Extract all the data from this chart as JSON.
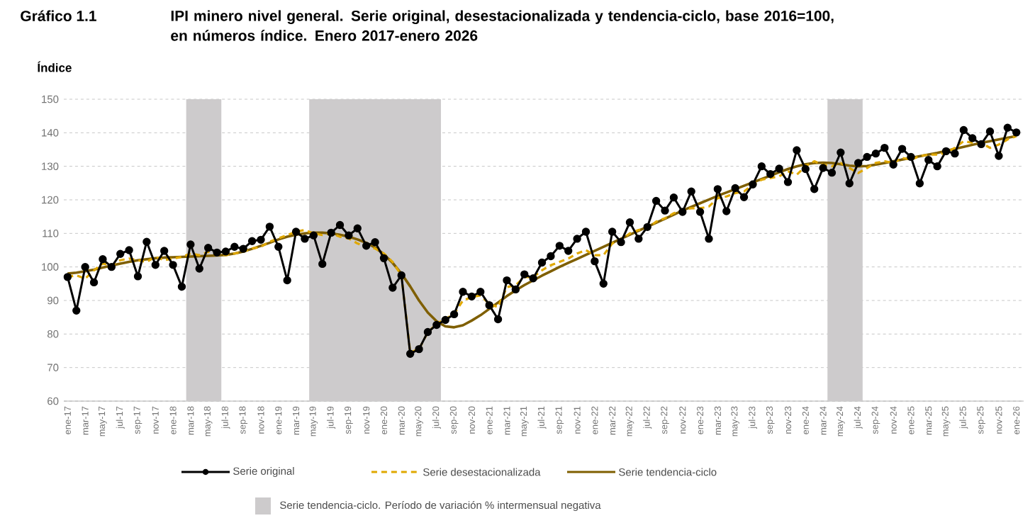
{
  "chart_data": {
    "type": "line",
    "title": "IPI minero nivel general. Serie original, desestacionalizada y tendencia-ciclo, base 2016=100, en números índice. Enero 2017-enero 2026",
    "annotations": [
      "Gráfico 1.1"
    ],
    "ylabel": "Índice",
    "x": [
      "2017-01",
      "2017-02",
      "2017-03",
      "2017-04",
      "2017-05",
      "2017-06",
      "2017-07",
      "2017-08",
      "2017-09",
      "2017-10",
      "2017-11",
      "2017-12",
      "2018-01",
      "2018-02",
      "2018-03",
      "2018-04",
      "2018-05",
      "2018-06",
      "2018-07",
      "2018-08",
      "2018-09",
      "2018-10",
      "2018-11",
      "2018-12",
      "2019-01",
      "2019-02",
      "2019-03",
      "2019-04",
      "2019-05",
      "2019-06",
      "2019-07",
      "2019-08",
      "2019-09",
      "2019-10",
      "2019-11",
      "2019-12",
      "2020-01",
      "2020-02",
      "2020-03",
      "2020-04",
      "2020-05",
      "2020-06",
      "2020-07",
      "2020-08",
      "2020-09",
      "2020-10",
      "2020-11",
      "2020-12",
      "2021-01",
      "2021-02",
      "2021-03",
      "2021-04",
      "2021-05",
      "2021-06",
      "2021-07",
      "2021-08",
      "2021-09",
      "2021-10",
      "2021-11",
      "2021-12",
      "2022-01",
      "2022-02",
      "2022-03",
      "2022-04",
      "2022-05",
      "2022-06",
      "2022-07",
      "2022-08",
      "2022-09",
      "2022-10",
      "2022-11",
      "2022-12",
      "2023-01",
      "2023-02",
      "2023-03",
      "2023-04",
      "2023-05",
      "2023-06",
      "2023-07",
      "2023-08",
      "2023-09",
      "2023-10",
      "2023-11",
      "2023-12",
      "2024-01",
      "2024-02",
      "2024-03",
      "2024-04",
      "2024-05",
      "2024-06",
      "2024-07",
      "2024-08",
      "2024-09",
      "2024-10",
      "2024-11",
      "2024-12",
      "2025-01",
      "2025-02",
      "2025-03",
      "2025-04",
      "2025-05",
      "2025-06",
      "2025-07",
      "2025-08",
      "2025-09",
      "2025-10",
      "2025-11",
      "2025-12",
      "2026-01"
    ],
    "xlim": [
      "2016-12-18",
      "2026-01-26"
    ],
    "xticks": [
      {
        "value": "2017-01",
        "label": "ene-17"
      },
      {
        "value": "2017-03",
        "label": "mar-17"
      },
      {
        "value": "2017-05",
        "label": "may-17"
      },
      {
        "value": "2017-07",
        "label": "jul-17"
      },
      {
        "value": "2017-09",
        "label": "sep-17"
      },
      {
        "value": "2017-11",
        "label": "nov-17"
      },
      {
        "value": "2018-01",
        "label": "ene-18"
      },
      {
        "value": "2018-03",
        "label": "mar-18"
      },
      {
        "value": "2018-05",
        "label": "may-18"
      },
      {
        "value": "2018-07",
        "label": "jul-18"
      },
      {
        "value": "2018-09",
        "label": "sep-18"
      },
      {
        "value": "2018-11",
        "label": "nov-18"
      },
      {
        "value": "2019-01",
        "label": "ene-19"
      },
      {
        "value": "2019-03",
        "label": "mar-19"
      },
      {
        "value": "2019-05",
        "label": "may-19"
      },
      {
        "value": "2019-07",
        "label": "jul-19"
      },
      {
        "value": "2019-09",
        "label": "sep-19"
      },
      {
        "value": "2019-11",
        "label": "nov-19"
      },
      {
        "value": "2020-01",
        "label": "ene-20"
      },
      {
        "value": "2020-03",
        "label": "mar-20"
      },
      {
        "value": "2020-05",
        "label": "may-20"
      },
      {
        "value": "2020-07",
        "label": "jul-20"
      },
      {
        "value": "2020-09",
        "label": "sep-20"
      },
      {
        "value": "2020-11",
        "label": "nov-20"
      },
      {
        "value": "2021-01",
        "label": "ene-21"
      },
      {
        "value": "2021-03",
        "label": "mar-21"
      },
      {
        "value": "2021-05",
        "label": "may-21"
      },
      {
        "value": "2021-07",
        "label": "jul-21"
      },
      {
        "value": "2021-09",
        "label": "sep-21"
      },
      {
        "value": "2021-11",
        "label": "nov-21"
      },
      {
        "value": "2022-01",
        "label": "ene-22"
      },
      {
        "value": "2022-03",
        "label": "mar-22"
      },
      {
        "value": "2022-05",
        "label": "may-22"
      },
      {
        "value": "2022-07",
        "label": "jul-22"
      },
      {
        "value": "2022-09",
        "label": "sep-22"
      },
      {
        "value": "2022-11",
        "label": "nov-22"
      },
      {
        "value": "2023-01",
        "label": "ene-23"
      },
      {
        "value": "2023-03",
        "label": "mar-23"
      },
      {
        "value": "2023-05",
        "label": "may-23"
      },
      {
        "value": "2023-07",
        "label": "jul-23"
      },
      {
        "value": "2023-09",
        "label": "sep-23"
      },
      {
        "value": "2023-11",
        "label": "nov-23"
      },
      {
        "value": "2024-01",
        "label": "ene-24"
      },
      {
        "value": "2024-03",
        "label": "mar-24"
      },
      {
        "value": "2024-05",
        "label": "may-24"
      },
      {
        "value": "2024-07",
        "label": "jul-24"
      },
      {
        "value": "2024-09",
        "label": "sep-24"
      },
      {
        "value": "2024-11",
        "label": "nov-24"
      },
      {
        "value": "2025-01",
        "label": "ene-25"
      },
      {
        "value": "2025-03",
        "label": "mar-25"
      },
      {
        "value": "2025-05",
        "label": "may-25"
      },
      {
        "value": "2025-07",
        "label": "jul-25"
      },
      {
        "value": "2025-09",
        "label": "sep-25"
      },
      {
        "value": "2025-11",
        "label": "nov-25"
      },
      {
        "value": "2026-01",
        "label": "ene-26"
      }
    ],
    "ylim": [
      60,
      150
    ],
    "yticks": [
      60,
      70,
      80,
      90,
      100,
      110,
      120,
      130,
      140,
      150
    ],
    "grid": "y",
    "legend": "bottom",
    "bands": [
      {
        "axis": "x",
        "from": "2018-02-16",
        "to": "2018-06-16",
        "color": "#cdcbcc",
        "label": "Serie tendencia-ciclo. Período de variación % intermensual negativa"
      },
      {
        "axis": "x",
        "from": "2019-04-16",
        "to": "2020-07-16",
        "color": "#cdcbcc"
      },
      {
        "axis": "x",
        "from": "2024-03-16",
        "to": "2024-07-16",
        "color": "#cdcbcc"
      }
    ],
    "series": [
      {
        "name": "Serie original",
        "color": "#000000",
        "marker": "circle",
        "line_style": "solid",
        "values": [
          97,
          87,
          100,
          95.4,
          102.3,
          100,
          103.9,
          105,
          97.2,
          107.5,
          100.6,
          104.8,
          100.6,
          94.1,
          106.7,
          99.5,
          105.7,
          104.3,
          104.6,
          106,
          105.4,
          107.7,
          108.1,
          112,
          106,
          96,
          110.5,
          108.4,
          109.4,
          100.9,
          110.2,
          112.5,
          109.4,
          111.5,
          106.3,
          107.4,
          102.6,
          93.8,
          97.5,
          74.1,
          75.5,
          80.6,
          82.7,
          84.2,
          85.9,
          92.6,
          91.2,
          92.6,
          88.6,
          84.4,
          96,
          93.3,
          97.8,
          96.6,
          101.3,
          103.2,
          106.3,
          104.8,
          108.4,
          110.5,
          101.7,
          95,
          110.5,
          107.4,
          113.3,
          108.4,
          111.9,
          119.7,
          116.8,
          120.7,
          116.4,
          122.5,
          116.4,
          108.4,
          123.2,
          116.6,
          123.5,
          120.8,
          124.6,
          130,
          127.7,
          129.3,
          125.3,
          134.8,
          129.2,
          123.2,
          129.5,
          128.1,
          134.1,
          124.9,
          131,
          132.8,
          133.8,
          135.5,
          130.5,
          135.2,
          132.8,
          124.9,
          131.9,
          130,
          134.5,
          133.8,
          140.8,
          138.4,
          136.6,
          140.4,
          133.1,
          141.5,
          140.1
        ]
      },
      {
        "name": "Serie desestacionalizada",
        "color": "#e0a800",
        "marker": "none",
        "line_style": "dashed",
        "values": [
          97,
          97.5,
          96.5,
          99,
          101,
          100.5,
          102,
          102.5,
          102,
          101.5,
          103,
          102,
          102.5,
          103,
          104,
          103.5,
          104.5,
          104,
          103.5,
          104,
          104.5,
          105.5,
          106,
          107.5,
          108.5,
          109.5,
          110.5,
          111,
          110,
          109.5,
          110,
          109,
          108.5,
          107,
          106,
          105.5,
          104,
          101.5,
          97.5,
          74.5,
          75.5,
          80.5,
          83,
          84.5,
          86,
          90,
          91,
          91.5,
          89,
          88,
          94,
          94.5,
          97,
          97,
          99,
          100.5,
          101.5,
          102.5,
          104,
          105,
          103.5,
          103.5,
          107,
          108,
          110,
          111,
          111.5,
          113.5,
          114.5,
          116,
          117,
          117.5,
          117.5,
          118,
          120.5,
          121,
          122,
          122.5,
          124.5,
          126,
          126.5,
          127,
          128.5,
          127.5,
          130,
          131.5,
          130.5,
          130,
          131,
          129.5,
          128,
          129.5,
          131,
          131.5,
          131,
          132.5,
          132,
          133,
          133.5,
          133.5,
          134,
          135.5,
          137.5,
          137,
          137,
          135.5,
          136.5,
          138,
          139
        ]
      },
      {
        "name": "Serie tendencia-ciclo",
        "color": "#7f5f00",
        "marker": "none",
        "line_style": "solid",
        "values": [
          98,
          98.3,
          98.7,
          99.2,
          99.8,
          100.4,
          101,
          101.5,
          102,
          102.3,
          102.6,
          102.8,
          102.9,
          103,
          103.1,
          103.2,
          103.3,
          103.4,
          103.6,
          104,
          104.6,
          105.4,
          106.3,
          107.2,
          108.2,
          109,
          109.6,
          110,
          110.2,
          110.2,
          110,
          109.6,
          109,
          108.2,
          107.2,
          105.8,
          103.8,
          101.2,
          98,
          94.2,
          90,
          86.4,
          83.8,
          82.3,
          82,
          82.6,
          84,
          85.6,
          87.5,
          89.4,
          91.3,
          93,
          94.6,
          96,
          97.4,
          98.7,
          100,
          101.2,
          102.4,
          103.6,
          104.8,
          106,
          107.2,
          108.4,
          109.6,
          110.8,
          112,
          113.2,
          114.4,
          115.6,
          116.8,
          117.9,
          119,
          120.1,
          121.2,
          122.2,
          123.2,
          124.2,
          125.2,
          126.2,
          127.2,
          128.2,
          129.2,
          130,
          130.6,
          131,
          131.1,
          131,
          130.6,
          130.2,
          130,
          130.1,
          130.5,
          131,
          131.5,
          132,
          132.5,
          133,
          133.5,
          134,
          134.6,
          135.2,
          135.8,
          136.4,
          137,
          137.5,
          138,
          138.5,
          139
        ]
      }
    ]
  }
}
